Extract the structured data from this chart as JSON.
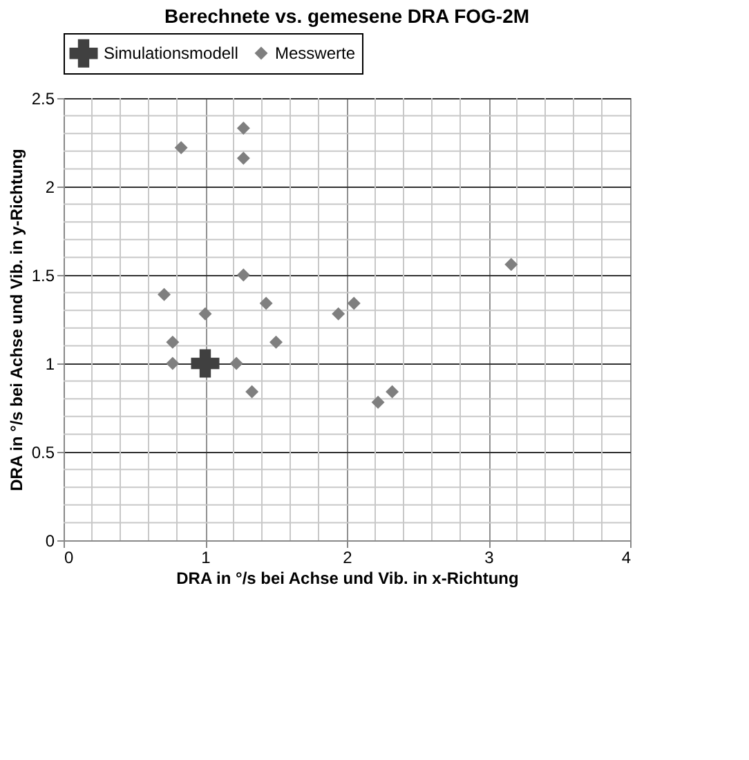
{
  "chart_data": {
    "type": "scatter",
    "title": "Berechnete vs. gemesene DRA FOG-2M",
    "xlabel": "DRA in °/s bei Achse und Vib. in x-Richtung",
    "ylabel": "DRA in °/s bei Achse und Vib. in y-Richtung",
    "series": [
      {
        "name": "Simulationsmodell",
        "color": "#404040",
        "marker": "cross",
        "x": [
          1.0
        ],
        "values": [
          1.0
        ]
      },
      {
        "name": "Messwerte",
        "color": "#7f7f7f",
        "marker": "diamond",
        "x": [
          1.27,
          0.83,
          1.27,
          3.16,
          1.27,
          0.71,
          1.43,
          2.05,
          1.94,
          1.0,
          0.77,
          1.5,
          0.77,
          1.22,
          1.33,
          2.32,
          2.22
        ],
        "values": [
          2.33,
          2.22,
          2.16,
          1.56,
          1.5,
          1.39,
          1.34,
          1.34,
          1.28,
          1.28,
          1.12,
          1.12,
          1.0,
          1.0,
          0.84,
          0.84,
          0.78
        ]
      }
    ],
    "xlim": [
      0,
      4
    ],
    "ylim": [
      0,
      2.5
    ],
    "xticks": [
      0,
      1,
      2,
      3,
      4
    ],
    "yticks": [
      0,
      0.5,
      1,
      1.5,
      2,
      2.5
    ],
    "grid": true,
    "legend": "top"
  }
}
